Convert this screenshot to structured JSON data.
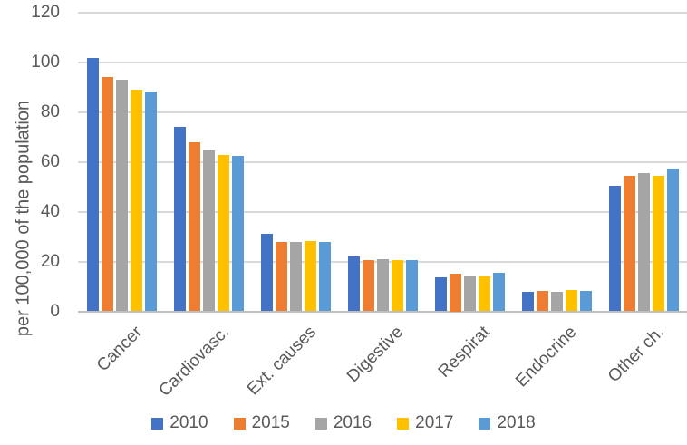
{
  "chart_data": {
    "type": "bar",
    "title": "",
    "xlabel": "",
    "ylabel": "per 100,000 of the population",
    "ylim": [
      0,
      120
    ],
    "yticks": [
      0,
      20,
      40,
      60,
      80,
      100,
      120
    ],
    "grid": true,
    "legend_position": "bottom",
    "categories": [
      "Cancer",
      "Cardiovasc.",
      "Ext. causes",
      "Digestive",
      "Respirat",
      "Endocrine",
      "Other ch."
    ],
    "series": [
      {
        "name": "2010",
        "color": "#4472C4",
        "values": [
          101.8,
          74.0,
          31.0,
          22.0,
          13.8,
          7.9,
          50.5
        ]
      },
      {
        "name": "2015",
        "color": "#ED7D31",
        "values": [
          94.0,
          68.0,
          27.8,
          20.5,
          15.0,
          8.1,
          54.5
        ]
      },
      {
        "name": "2016",
        "color": "#A5A5A5",
        "values": [
          93.2,
          64.8,
          28.0,
          21.0,
          14.3,
          7.9,
          55.7
        ]
      },
      {
        "name": "2017",
        "color": "#FFC000",
        "values": [
          88.9,
          62.8,
          28.2,
          20.4,
          14.0,
          8.7,
          54.4
        ]
      },
      {
        "name": "2018",
        "color": "#5B9BD5",
        "values": [
          88.2,
          62.3,
          27.9,
          20.6,
          15.4,
          8.1,
          57.3
        ]
      }
    ],
    "colors": {
      "text": "#595959",
      "gridline": "#d9d9d9",
      "axis_line": "#bfbfbf",
      "background": "#ffffff"
    }
  }
}
